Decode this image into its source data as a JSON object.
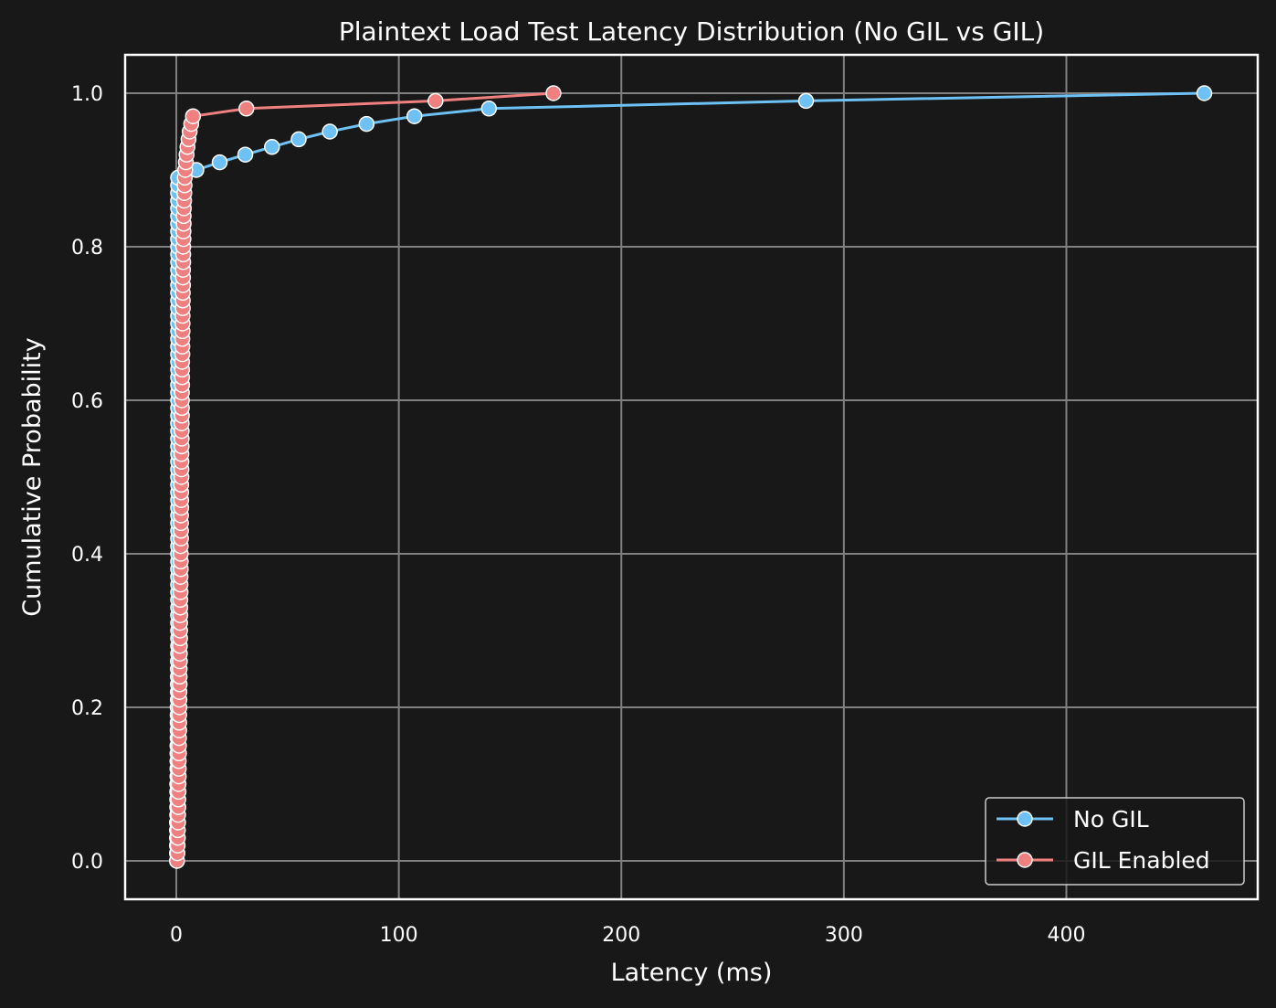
{
  "chart_data": {
    "type": "line",
    "title": "Plaintext Load Test Latency Distribution (No GIL vs GIL)",
    "xlabel": "Latency (ms)",
    "ylabel": "Cumulative Probability",
    "xlim": [
      -23,
      486
    ],
    "ylim": [
      -0.05,
      1.05
    ],
    "xticks": [
      0,
      100,
      200,
      300,
      400
    ],
    "yticks": [
      0.0,
      0.2,
      0.4,
      0.6,
      0.8,
      1.0
    ],
    "grid": true,
    "legend_position": "lower-right",
    "background_color": "#181818",
    "grid_color": "#808080",
    "series": [
      {
        "name": "No GIL",
        "color": "#6ec1f5",
        "points": [
          [
            0.3,
            0.0
          ],
          [
            0.3,
            0.01
          ],
          [
            0.3,
            0.02
          ],
          [
            0.3,
            0.03
          ],
          [
            0.3,
            0.04
          ],
          [
            0.3,
            0.05
          ],
          [
            0.4,
            0.06
          ],
          [
            0.4,
            0.07
          ],
          [
            0.4,
            0.08
          ],
          [
            0.4,
            0.09
          ],
          [
            0.4,
            0.1
          ],
          [
            0.5,
            0.11
          ],
          [
            0.5,
            0.12
          ],
          [
            0.5,
            0.13
          ],
          [
            0.5,
            0.14
          ],
          [
            0.5,
            0.15
          ],
          [
            0.6,
            0.16
          ],
          [
            0.6,
            0.17
          ],
          [
            0.6,
            0.18
          ],
          [
            0.6,
            0.19
          ],
          [
            0.6,
            0.2
          ],
          [
            0.7,
            0.21
          ],
          [
            0.7,
            0.22
          ],
          [
            0.7,
            0.23
          ],
          [
            0.7,
            0.24
          ],
          [
            0.7,
            0.25
          ],
          [
            0.7,
            0.26
          ],
          [
            0.8,
            0.27
          ],
          [
            0.8,
            0.28
          ],
          [
            0.8,
            0.29
          ],
          [
            0.8,
            0.3
          ],
          [
            0.8,
            0.31
          ],
          [
            0.8,
            0.32
          ],
          [
            0.8,
            0.33
          ],
          [
            0.8,
            0.34
          ],
          [
            0.8,
            0.35
          ],
          [
            0.8,
            0.36
          ],
          [
            0.8,
            0.37
          ],
          [
            0.8,
            0.38
          ],
          [
            0.8,
            0.39
          ],
          [
            0.8,
            0.4
          ],
          [
            0.8,
            0.41
          ],
          [
            0.8,
            0.42
          ],
          [
            0.8,
            0.43
          ],
          [
            0.8,
            0.44
          ],
          [
            0.8,
            0.45
          ],
          [
            0.8,
            0.46
          ],
          [
            0.8,
            0.47
          ],
          [
            0.8,
            0.48
          ],
          [
            0.8,
            0.49
          ],
          [
            0.8,
            0.5
          ],
          [
            0.8,
            0.51
          ],
          [
            0.8,
            0.52
          ],
          [
            0.8,
            0.53
          ],
          [
            0.8,
            0.54
          ],
          [
            0.8,
            0.55
          ],
          [
            0.8,
            0.56
          ],
          [
            0.8,
            0.57
          ],
          [
            0.8,
            0.58
          ],
          [
            0.8,
            0.59
          ],
          [
            0.8,
            0.6
          ],
          [
            0.8,
            0.61
          ],
          [
            0.8,
            0.62
          ],
          [
            0.8,
            0.63
          ],
          [
            0.8,
            0.64
          ],
          [
            0.8,
            0.65
          ],
          [
            0.8,
            0.66
          ],
          [
            0.8,
            0.67
          ],
          [
            0.8,
            0.68
          ],
          [
            0.8,
            0.69
          ],
          [
            0.8,
            0.7
          ],
          [
            0.8,
            0.71
          ],
          [
            0.8,
            0.72
          ],
          [
            0.8,
            0.73
          ],
          [
            0.8,
            0.74
          ],
          [
            0.8,
            0.75
          ],
          [
            0.8,
            0.76
          ],
          [
            0.8,
            0.77
          ],
          [
            0.8,
            0.78
          ],
          [
            0.8,
            0.79
          ],
          [
            0.8,
            0.8
          ],
          [
            0.8,
            0.81
          ],
          [
            0.8,
            0.82
          ],
          [
            0.8,
            0.83
          ],
          [
            0.8,
            0.84
          ],
          [
            0.8,
            0.85
          ],
          [
            0.8,
            0.86
          ],
          [
            0.8,
            0.87
          ],
          [
            0.8,
            0.88
          ],
          [
            0.8,
            0.89
          ],
          [
            9,
            0.9
          ],
          [
            19.5,
            0.91
          ],
          [
            31,
            0.92
          ],
          [
            43,
            0.93
          ],
          [
            55,
            0.94
          ],
          [
            69,
            0.95
          ],
          [
            85.5,
            0.96
          ],
          [
            107,
            0.97
          ],
          [
            140.5,
            0.98
          ],
          [
            283,
            0.99
          ],
          [
            462,
            1.0
          ]
        ]
      },
      {
        "name": "GIL Enabled",
        "color": "#f07f7f",
        "points": [
          [
            0.3,
            0.0
          ],
          [
            0.5,
            0.01
          ],
          [
            0.6,
            0.02
          ],
          [
            0.7,
            0.03
          ],
          [
            0.7,
            0.04
          ],
          [
            0.8,
            0.05
          ],
          [
            0.8,
            0.06
          ],
          [
            0.9,
            0.07
          ],
          [
            0.9,
            0.08
          ],
          [
            1.0,
            0.09
          ],
          [
            1.0,
            0.1
          ],
          [
            1.1,
            0.11
          ],
          [
            1.1,
            0.12
          ],
          [
            1.1,
            0.13
          ],
          [
            1.2,
            0.14
          ],
          [
            1.2,
            0.15
          ],
          [
            1.2,
            0.16
          ],
          [
            1.3,
            0.17
          ],
          [
            1.3,
            0.18
          ],
          [
            1.3,
            0.19
          ],
          [
            1.4,
            0.2
          ],
          [
            1.4,
            0.21
          ],
          [
            1.4,
            0.22
          ],
          [
            1.5,
            0.23
          ],
          [
            1.5,
            0.24
          ],
          [
            1.5,
            0.25
          ],
          [
            1.6,
            0.26
          ],
          [
            1.6,
            0.27
          ],
          [
            1.6,
            0.28
          ],
          [
            1.7,
            0.29
          ],
          [
            1.7,
            0.3
          ],
          [
            1.7,
            0.31
          ],
          [
            1.8,
            0.32
          ],
          [
            1.8,
            0.33
          ],
          [
            1.8,
            0.34
          ],
          [
            1.9,
            0.35
          ],
          [
            1.9,
            0.36
          ],
          [
            1.9,
            0.37
          ],
          [
            2.0,
            0.38
          ],
          [
            2.0,
            0.39
          ],
          [
            2.0,
            0.4
          ],
          [
            2.0,
            0.41
          ],
          [
            2.1,
            0.42
          ],
          [
            2.1,
            0.43
          ],
          [
            2.1,
            0.44
          ],
          [
            2.1,
            0.45
          ],
          [
            2.2,
            0.46
          ],
          [
            2.2,
            0.47
          ],
          [
            2.2,
            0.48
          ],
          [
            2.2,
            0.49
          ],
          [
            2.3,
            0.5
          ],
          [
            2.3,
            0.51
          ],
          [
            2.3,
            0.52
          ],
          [
            2.3,
            0.53
          ],
          [
            2.4,
            0.54
          ],
          [
            2.4,
            0.55
          ],
          [
            2.4,
            0.56
          ],
          [
            2.4,
            0.57
          ],
          [
            2.5,
            0.58
          ],
          [
            2.5,
            0.59
          ],
          [
            2.5,
            0.6
          ],
          [
            2.5,
            0.61
          ],
          [
            2.6,
            0.62
          ],
          [
            2.6,
            0.63
          ],
          [
            2.6,
            0.64
          ],
          [
            2.6,
            0.65
          ],
          [
            2.7,
            0.66
          ],
          [
            2.7,
            0.67
          ],
          [
            2.7,
            0.68
          ],
          [
            2.8,
            0.69
          ],
          [
            2.8,
            0.7
          ],
          [
            2.8,
            0.71
          ],
          [
            2.9,
            0.72
          ],
          [
            2.9,
            0.73
          ],
          [
            2.9,
            0.74
          ],
          [
            3.0,
            0.75
          ],
          [
            3.0,
            0.76
          ],
          [
            3.0,
            0.77
          ],
          [
            3.1,
            0.78
          ],
          [
            3.1,
            0.79
          ],
          [
            3.1,
            0.8
          ],
          [
            3.2,
            0.81
          ],
          [
            3.2,
            0.82
          ],
          [
            3.3,
            0.83
          ],
          [
            3.3,
            0.84
          ],
          [
            3.4,
            0.85
          ],
          [
            3.5,
            0.86
          ],
          [
            3.6,
            0.87
          ],
          [
            3.7,
            0.88
          ],
          [
            3.8,
            0.89
          ],
          [
            4.0,
            0.9
          ],
          [
            4.3,
            0.91
          ],
          [
            4.6,
            0.92
          ],
          [
            5.0,
            0.93
          ],
          [
            5.5,
            0.94
          ],
          [
            6.0,
            0.95
          ],
          [
            6.7,
            0.96
          ],
          [
            7.5,
            0.97
          ],
          [
            31.5,
            0.98
          ],
          [
            116.5,
            0.99
          ],
          [
            169.5,
            1.0
          ]
        ]
      }
    ]
  }
}
